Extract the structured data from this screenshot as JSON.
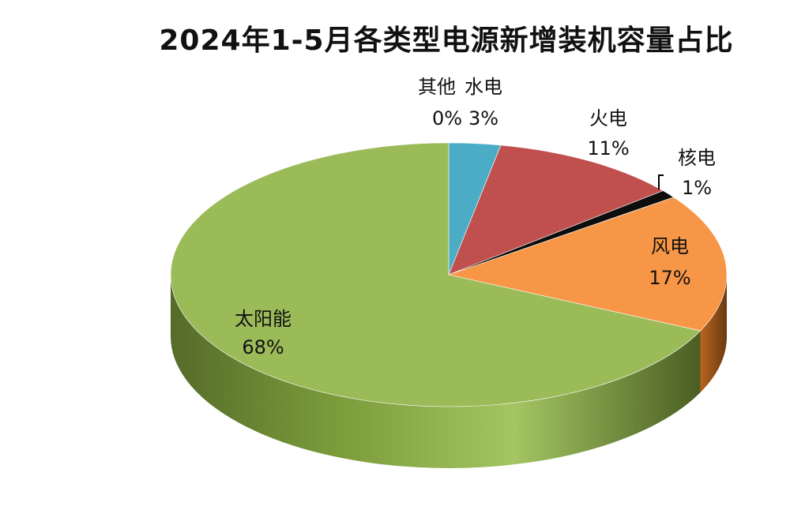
{
  "chart_data": {
    "type": "pie",
    "title": "2024年1-5月各类型电源新增装机容量占比",
    "slices": [
      {
        "name": "水电",
        "value": 3,
        "label": "3%",
        "color": "#4bacc6"
      },
      {
        "name": "火电",
        "value": 11,
        "label": "11%",
        "color": "#c0504d"
      },
      {
        "name": "核电",
        "value": 1,
        "label": "1%",
        "color": "#0d0d0d"
      },
      {
        "name": "风电",
        "value": 17,
        "label": "17%",
        "color": "#f79646"
      },
      {
        "name": "太阳能",
        "value": 68,
        "label": "68%",
        "color": "#9bbb59"
      },
      {
        "name": "其他",
        "value": 0,
        "label": "0%",
        "color": "#8064a2"
      }
    ],
    "legend": "none"
  }
}
